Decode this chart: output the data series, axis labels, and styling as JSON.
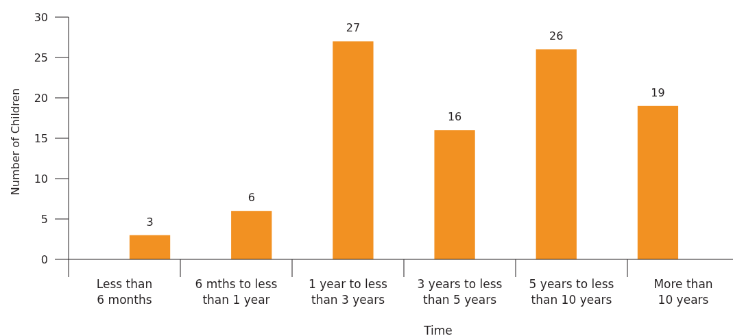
{
  "chart_data": {
    "type": "bar",
    "xlabel": "Time",
    "ylabel": "Number of Children",
    "categories": [
      "Less than\n6 months",
      "6 mths to less\nthan 1 year",
      "1 year to less\nthan 3 years",
      "3 years to less\nthan 5 years",
      "5 years to less\nthan 10 years",
      "More than\n10 years"
    ],
    "values": [
      3,
      6,
      27,
      16,
      26,
      19
    ],
    "color": "#f29122",
    "ylim": [
      0,
      30
    ],
    "yticks": [
      0,
      5,
      10,
      15,
      20,
      25,
      30
    ],
    "data_labels": true,
    "grid": false
  }
}
